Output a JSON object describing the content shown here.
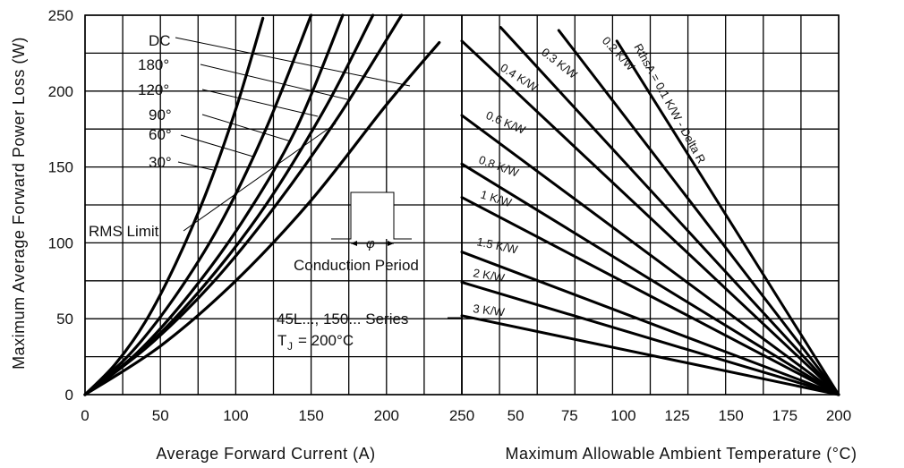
{
  "chart_data": [
    {
      "type": "line",
      "xlabel": "Average Forward Current (A)",
      "ylabel": "Maximum Average Forward Power Loss (W)",
      "xlim": [
        0,
        250
      ],
      "ylim": [
        0,
        250
      ],
      "x_ticks": [
        "0",
        "50",
        "100",
        "150",
        "200",
        "250"
      ],
      "y_ticks": [
        "0",
        "50",
        "100",
        "150",
        "200",
        "250"
      ],
      "grid": true,
      "series": [
        {
          "name": "30°",
          "x": [
            0,
            20,
            40,
            60,
            80,
            100,
            118
          ],
          "y": [
            0,
            20,
            48,
            86,
            132,
            188,
            248
          ]
        },
        {
          "name": "60°",
          "x": [
            0,
            30,
            60,
            90,
            120,
            150
          ],
          "y": [
            0,
            27,
            65,
            113,
            175,
            250
          ]
        },
        {
          "name": "90°",
          "x": [
            0,
            35,
            70,
            105,
            140,
            171
          ],
          "y": [
            0,
            28,
            67,
            115,
            175,
            250
          ]
        },
        {
          "name": "120°",
          "x": [
            0,
            40,
            80,
            120,
            160,
            191
          ],
          "y": [
            0,
            31,
            73,
            125,
            190,
            250
          ]
        },
        {
          "name": "180°",
          "x": [
            0,
            42,
            84,
            126,
            168,
            210
          ],
          "y": [
            0,
            32,
            73,
            124,
            183,
            250
          ]
        },
        {
          "name": "DC",
          "x": [
            0,
            50,
            100,
            150,
            200,
            235
          ],
          "y": [
            0,
            32,
            75,
            128,
            191,
            232
          ]
        }
      ],
      "annotations": [
        "RMS Limit",
        "Conduction Period",
        "45L..., 150... Series",
        "T",
        "J",
        "= 200°C"
      ]
    },
    {
      "type": "line",
      "xlabel": "Maximum Allowable Ambient Temperature (°C)",
      "xlim": [
        25,
        200
      ],
      "ylim": [
        0,
        250
      ],
      "x_ticks": [
        "25",
        "50",
        "75",
        "100",
        "125",
        "150",
        "175",
        "200"
      ],
      "grid": true,
      "series": [
        {
          "name": "RthsA = 0.1 K/W - Delta R",
          "x": [
            97,
            200
          ],
          "y": [
            233,
            0
          ]
        },
        {
          "name": "0.2 K/W",
          "x": [
            70,
            200
          ],
          "y": [
            240,
            0
          ]
        },
        {
          "name": "0.3 K/W",
          "x": [
            43,
            200
          ],
          "y": [
            242,
            0
          ]
        },
        {
          "name": "0.4 K/W",
          "x": [
            25,
            200
          ],
          "y": [
            233,
            0
          ]
        },
        {
          "name": "0.6 K/W",
          "x": [
            25,
            200
          ],
          "y": [
            184,
            0
          ]
        },
        {
          "name": "0.8 K/W",
          "x": [
            25,
            200
          ],
          "y": [
            152,
            0
          ]
        },
        {
          "name": "1 K/W",
          "x": [
            25,
            200
          ],
          "y": [
            130,
            0
          ]
        },
        {
          "name": "1.5 K/W",
          "x": [
            25,
            200
          ],
          "y": [
            94,
            0
          ]
        },
        {
          "name": "2 K/W",
          "x": [
            25,
            200
          ],
          "y": [
            74,
            0
          ]
        },
        {
          "name": "3 K/W",
          "x": [
            25,
            200
          ],
          "y": [
            52,
            0
          ]
        }
      ]
    }
  ],
  "labels": {
    "left_x_title": "Average Forward Current (A)",
    "right_x_title": "Maximum Allowable Ambient Temperature (°C)",
    "y_title": "Maximum Average Forward Power Loss (W)",
    "angle_dc": "DC",
    "angle_180": "180°",
    "angle_120": "120°",
    "angle_90": "90°",
    "angle_60": "60°",
    "angle_30": "30°",
    "rms_limit": "RMS Limit",
    "conduction_period": "Conduction Period",
    "phi": "φ",
    "series_name": "45L..., 150... Series",
    "tj_t": "T",
    "tj_sub": "J",
    "tj_value": "= 200°C",
    "r_01": "RthsA  = 0.1 K/W  - Delta R",
    "r_02": "0.2 K/W",
    "r_03": "0.3 K/W",
    "r_04": "0.4 K/W",
    "r_06": "0.6 K/W",
    "r_08": "0.8 K/W",
    "r_1": "1 K/W",
    "r_15": "1.5 K/W",
    "r_2": "2 K/W",
    "r_3": "3 K/W"
  }
}
